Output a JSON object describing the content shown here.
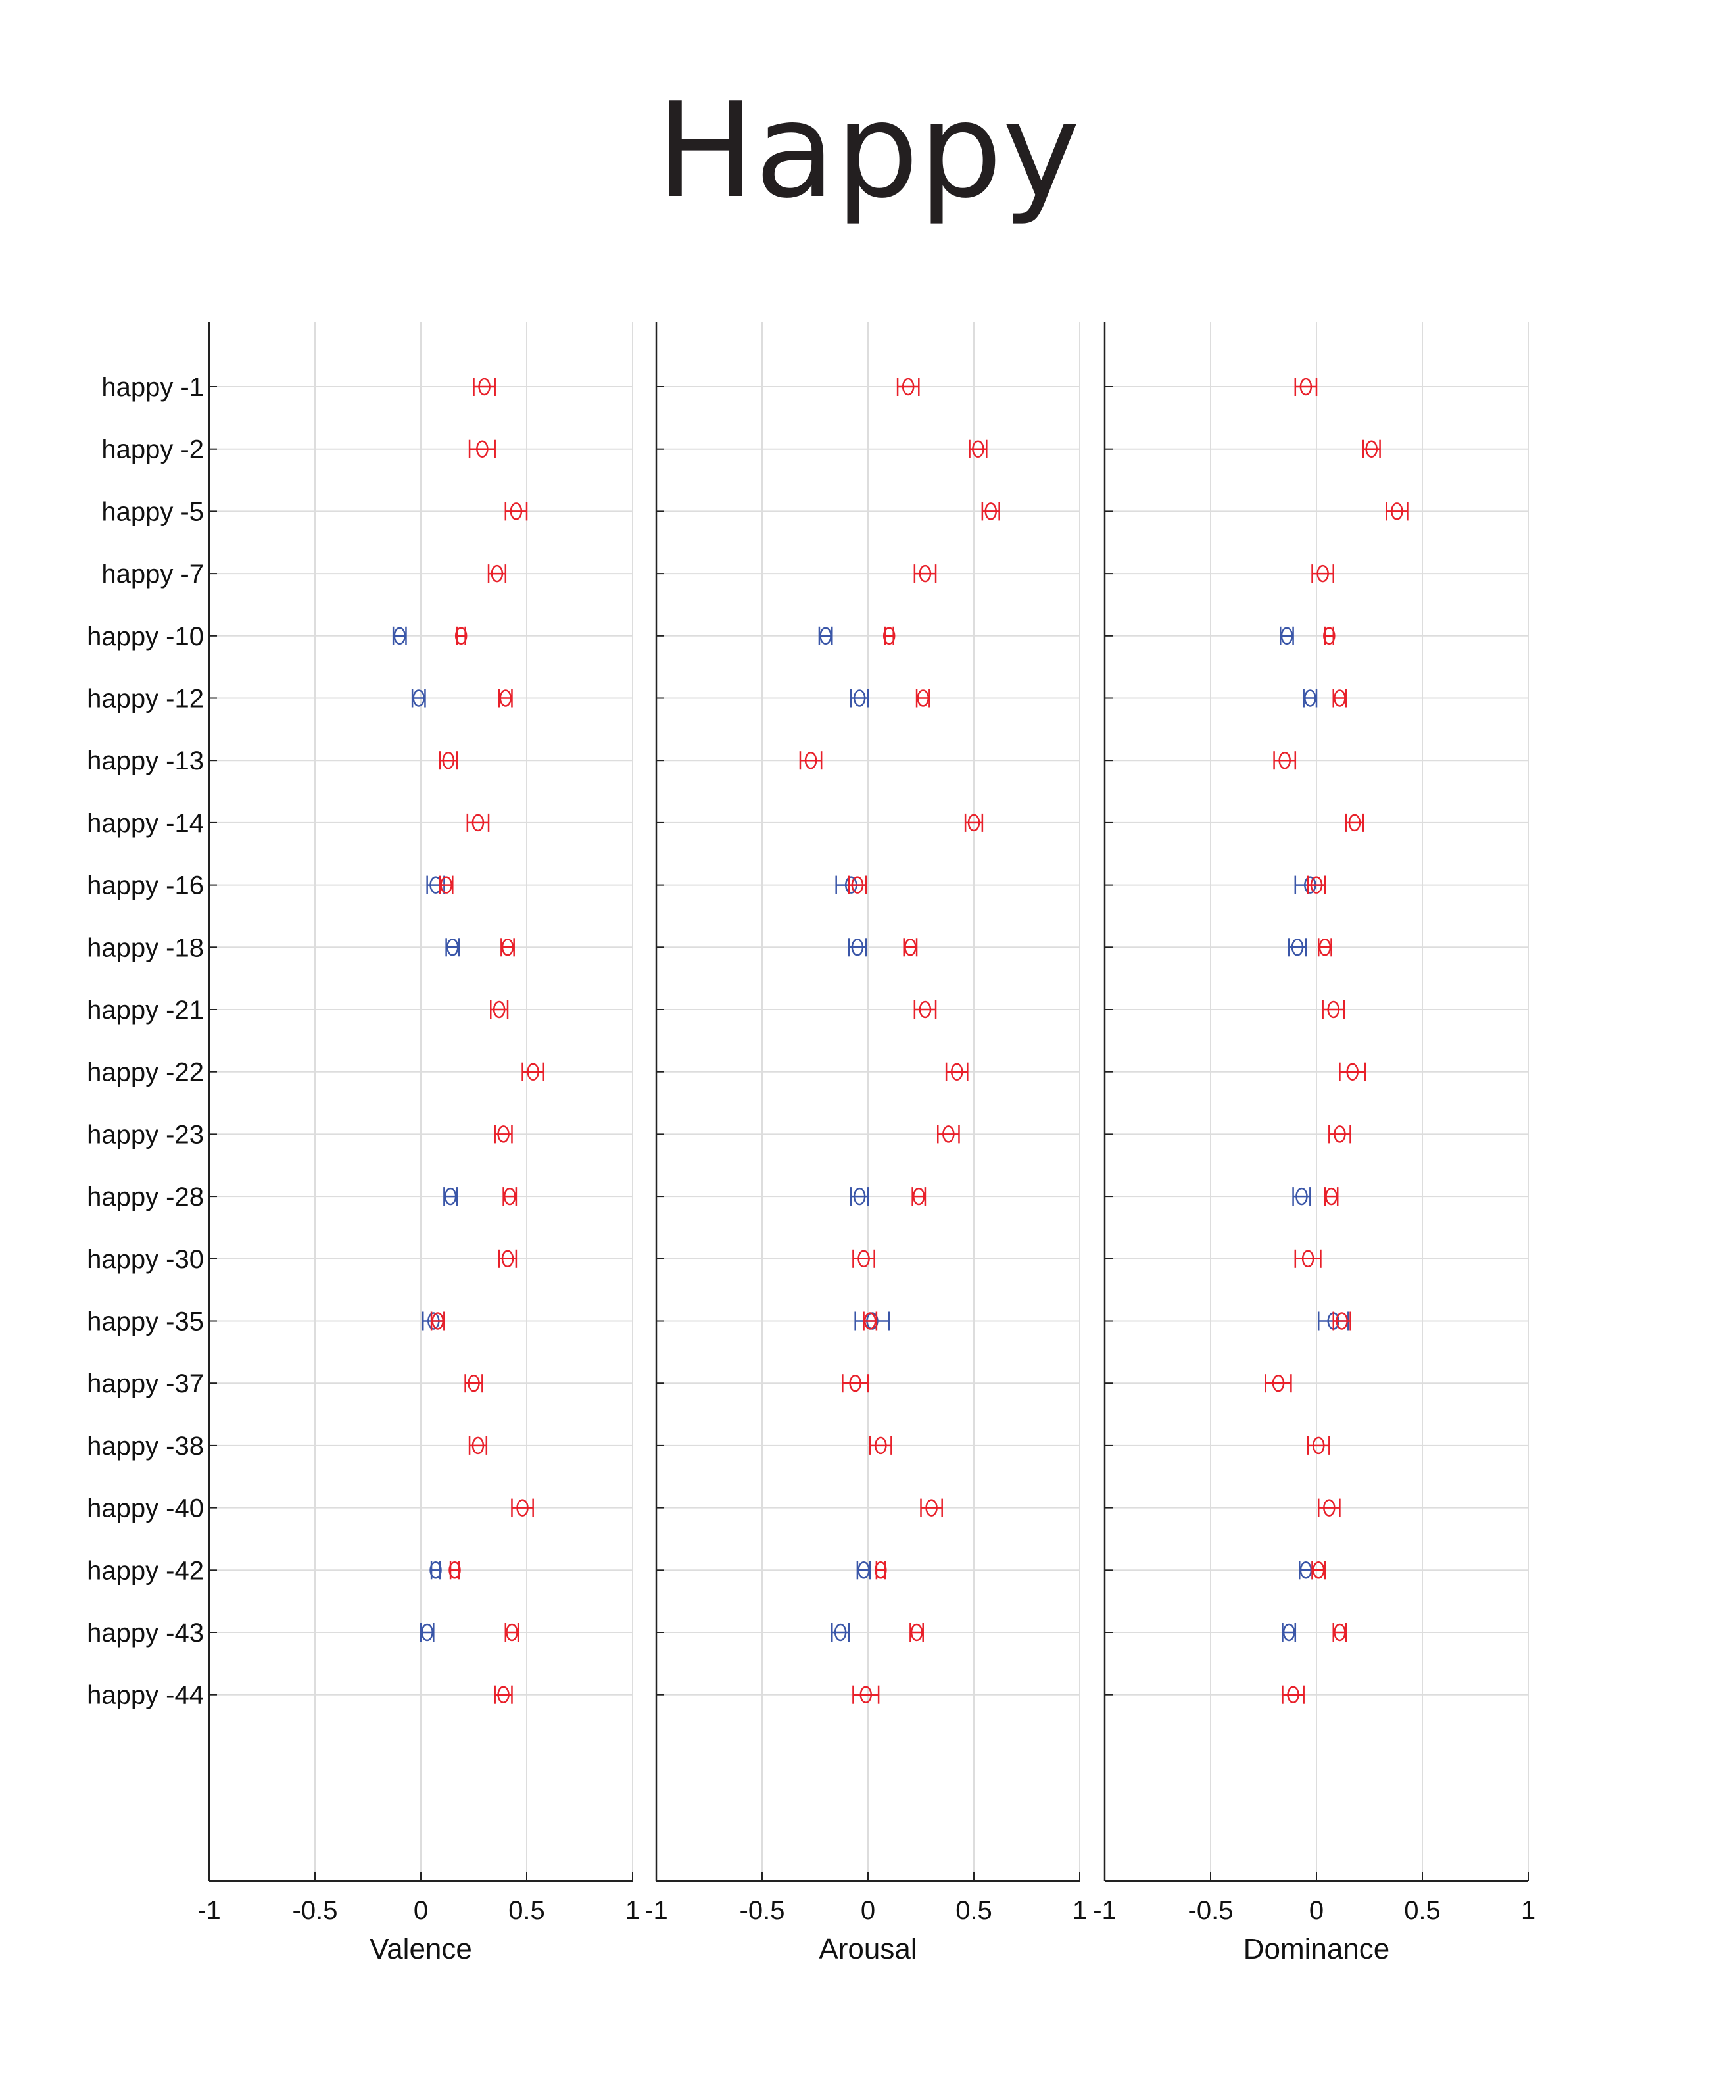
{
  "title": "Happy",
  "colors": {
    "red": "#e8202a",
    "blue": "#3a56a8",
    "grid": "#dddddd",
    "axis": "#222222"
  },
  "chart_data": {
    "type": "errorbar",
    "categories": [
      "happy -1",
      "happy -2",
      "happy -5",
      "happy -7",
      "happy -10",
      "happy -12",
      "happy -13",
      "happy -14",
      "happy -16",
      "happy -18",
      "happy -21",
      "happy -22",
      "happy -23",
      "happy -28",
      "happy -30",
      "happy -35",
      "happy -37",
      "happy -38",
      "happy -40",
      "happy -42",
      "happy -43",
      "happy -44"
    ],
    "xlim": [
      -1,
      1
    ],
    "xticks": [
      "-1",
      "-0.5",
      "0",
      "0.5",
      "1"
    ],
    "grid": true,
    "panels": [
      {
        "xlabel": "Valence",
        "red": [
          [
            0.3,
            0.05
          ],
          [
            0.29,
            0.06
          ],
          [
            0.45,
            0.05
          ],
          [
            0.36,
            0.04
          ],
          [
            0.19,
            0.02
          ],
          [
            0.4,
            0.03
          ],
          [
            0.13,
            0.04
          ],
          [
            0.27,
            0.05
          ],
          [
            0.12,
            0.03
          ],
          [
            0.41,
            0.03
          ],
          [
            0.37,
            0.04
          ],
          [
            0.53,
            0.05
          ],
          [
            0.39,
            0.04
          ],
          [
            0.42,
            0.03
          ],
          [
            0.41,
            0.04
          ],
          [
            0.08,
            0.03
          ],
          [
            0.25,
            0.04
          ],
          [
            0.27,
            0.04
          ],
          [
            0.48,
            0.05
          ],
          [
            0.16,
            0.02
          ],
          [
            0.43,
            0.03
          ],
          [
            0.39,
            0.04
          ]
        ],
        "blue": [
          null,
          null,
          null,
          null,
          [
            -0.1,
            0.03
          ],
          [
            -0.01,
            0.03
          ],
          null,
          null,
          [
            0.07,
            0.04
          ],
          [
            0.15,
            0.03
          ],
          null,
          null,
          null,
          [
            0.14,
            0.03
          ],
          null,
          [
            0.06,
            0.05
          ],
          null,
          null,
          null,
          [
            0.07,
            0.02
          ],
          [
            0.03,
            0.03
          ],
          null
        ]
      },
      {
        "xlabel": "Arousal",
        "red": [
          [
            0.19,
            0.05
          ],
          [
            0.52,
            0.04
          ],
          [
            0.58,
            0.04
          ],
          [
            0.27,
            0.05
          ],
          [
            0.1,
            0.02
          ],
          [
            0.26,
            0.03
          ],
          [
            -0.27,
            0.05
          ],
          [
            0.5,
            0.04
          ],
          [
            -0.05,
            0.04
          ],
          [
            0.2,
            0.03
          ],
          [
            0.27,
            0.05
          ],
          [
            0.42,
            0.05
          ],
          [
            0.38,
            0.05
          ],
          [
            0.24,
            0.03
          ],
          [
            -0.02,
            0.05
          ],
          [
            0.01,
            0.03
          ],
          [
            -0.06,
            0.06
          ],
          [
            0.06,
            0.05
          ],
          [
            0.3,
            0.05
          ],
          [
            0.06,
            0.02
          ],
          [
            0.23,
            0.03
          ],
          [
            -0.01,
            0.06
          ]
        ],
        "blue": [
          null,
          null,
          null,
          null,
          [
            -0.2,
            0.03
          ],
          [
            -0.04,
            0.04
          ],
          null,
          null,
          [
            -0.08,
            0.07
          ],
          [
            -0.05,
            0.04
          ],
          null,
          null,
          null,
          [
            -0.04,
            0.04
          ],
          null,
          [
            0.02,
            0.08
          ],
          null,
          null,
          null,
          [
            -0.02,
            0.03
          ],
          [
            -0.13,
            0.04
          ],
          null
        ]
      },
      {
        "xlabel": "Dominance",
        "red": [
          [
            -0.05,
            0.05
          ],
          [
            0.26,
            0.04
          ],
          [
            0.38,
            0.05
          ],
          [
            0.03,
            0.05
          ],
          [
            0.06,
            0.02
          ],
          [
            0.11,
            0.03
          ],
          [
            -0.15,
            0.05
          ],
          [
            0.18,
            0.04
          ],
          [
            0.0,
            0.04
          ],
          [
            0.04,
            0.03
          ],
          [
            0.08,
            0.05
          ],
          [
            0.17,
            0.06
          ],
          [
            0.11,
            0.05
          ],
          [
            0.07,
            0.03
          ],
          [
            -0.04,
            0.06
          ],
          [
            0.12,
            0.04
          ],
          [
            -0.18,
            0.06
          ],
          [
            0.01,
            0.05
          ],
          [
            0.06,
            0.05
          ],
          [
            0.01,
            0.03
          ],
          [
            0.11,
            0.03
          ],
          [
            -0.11,
            0.05
          ]
        ],
        "blue": [
          null,
          null,
          null,
          null,
          [
            -0.14,
            0.03
          ],
          [
            -0.03,
            0.03
          ],
          null,
          null,
          [
            -0.03,
            0.07
          ],
          [
            -0.09,
            0.04
          ],
          null,
          null,
          null,
          [
            -0.07,
            0.04
          ],
          null,
          [
            0.08,
            0.07
          ],
          null,
          null,
          null,
          [
            -0.05,
            0.03
          ],
          [
            -0.13,
            0.03
          ],
          null
        ]
      }
    ]
  }
}
